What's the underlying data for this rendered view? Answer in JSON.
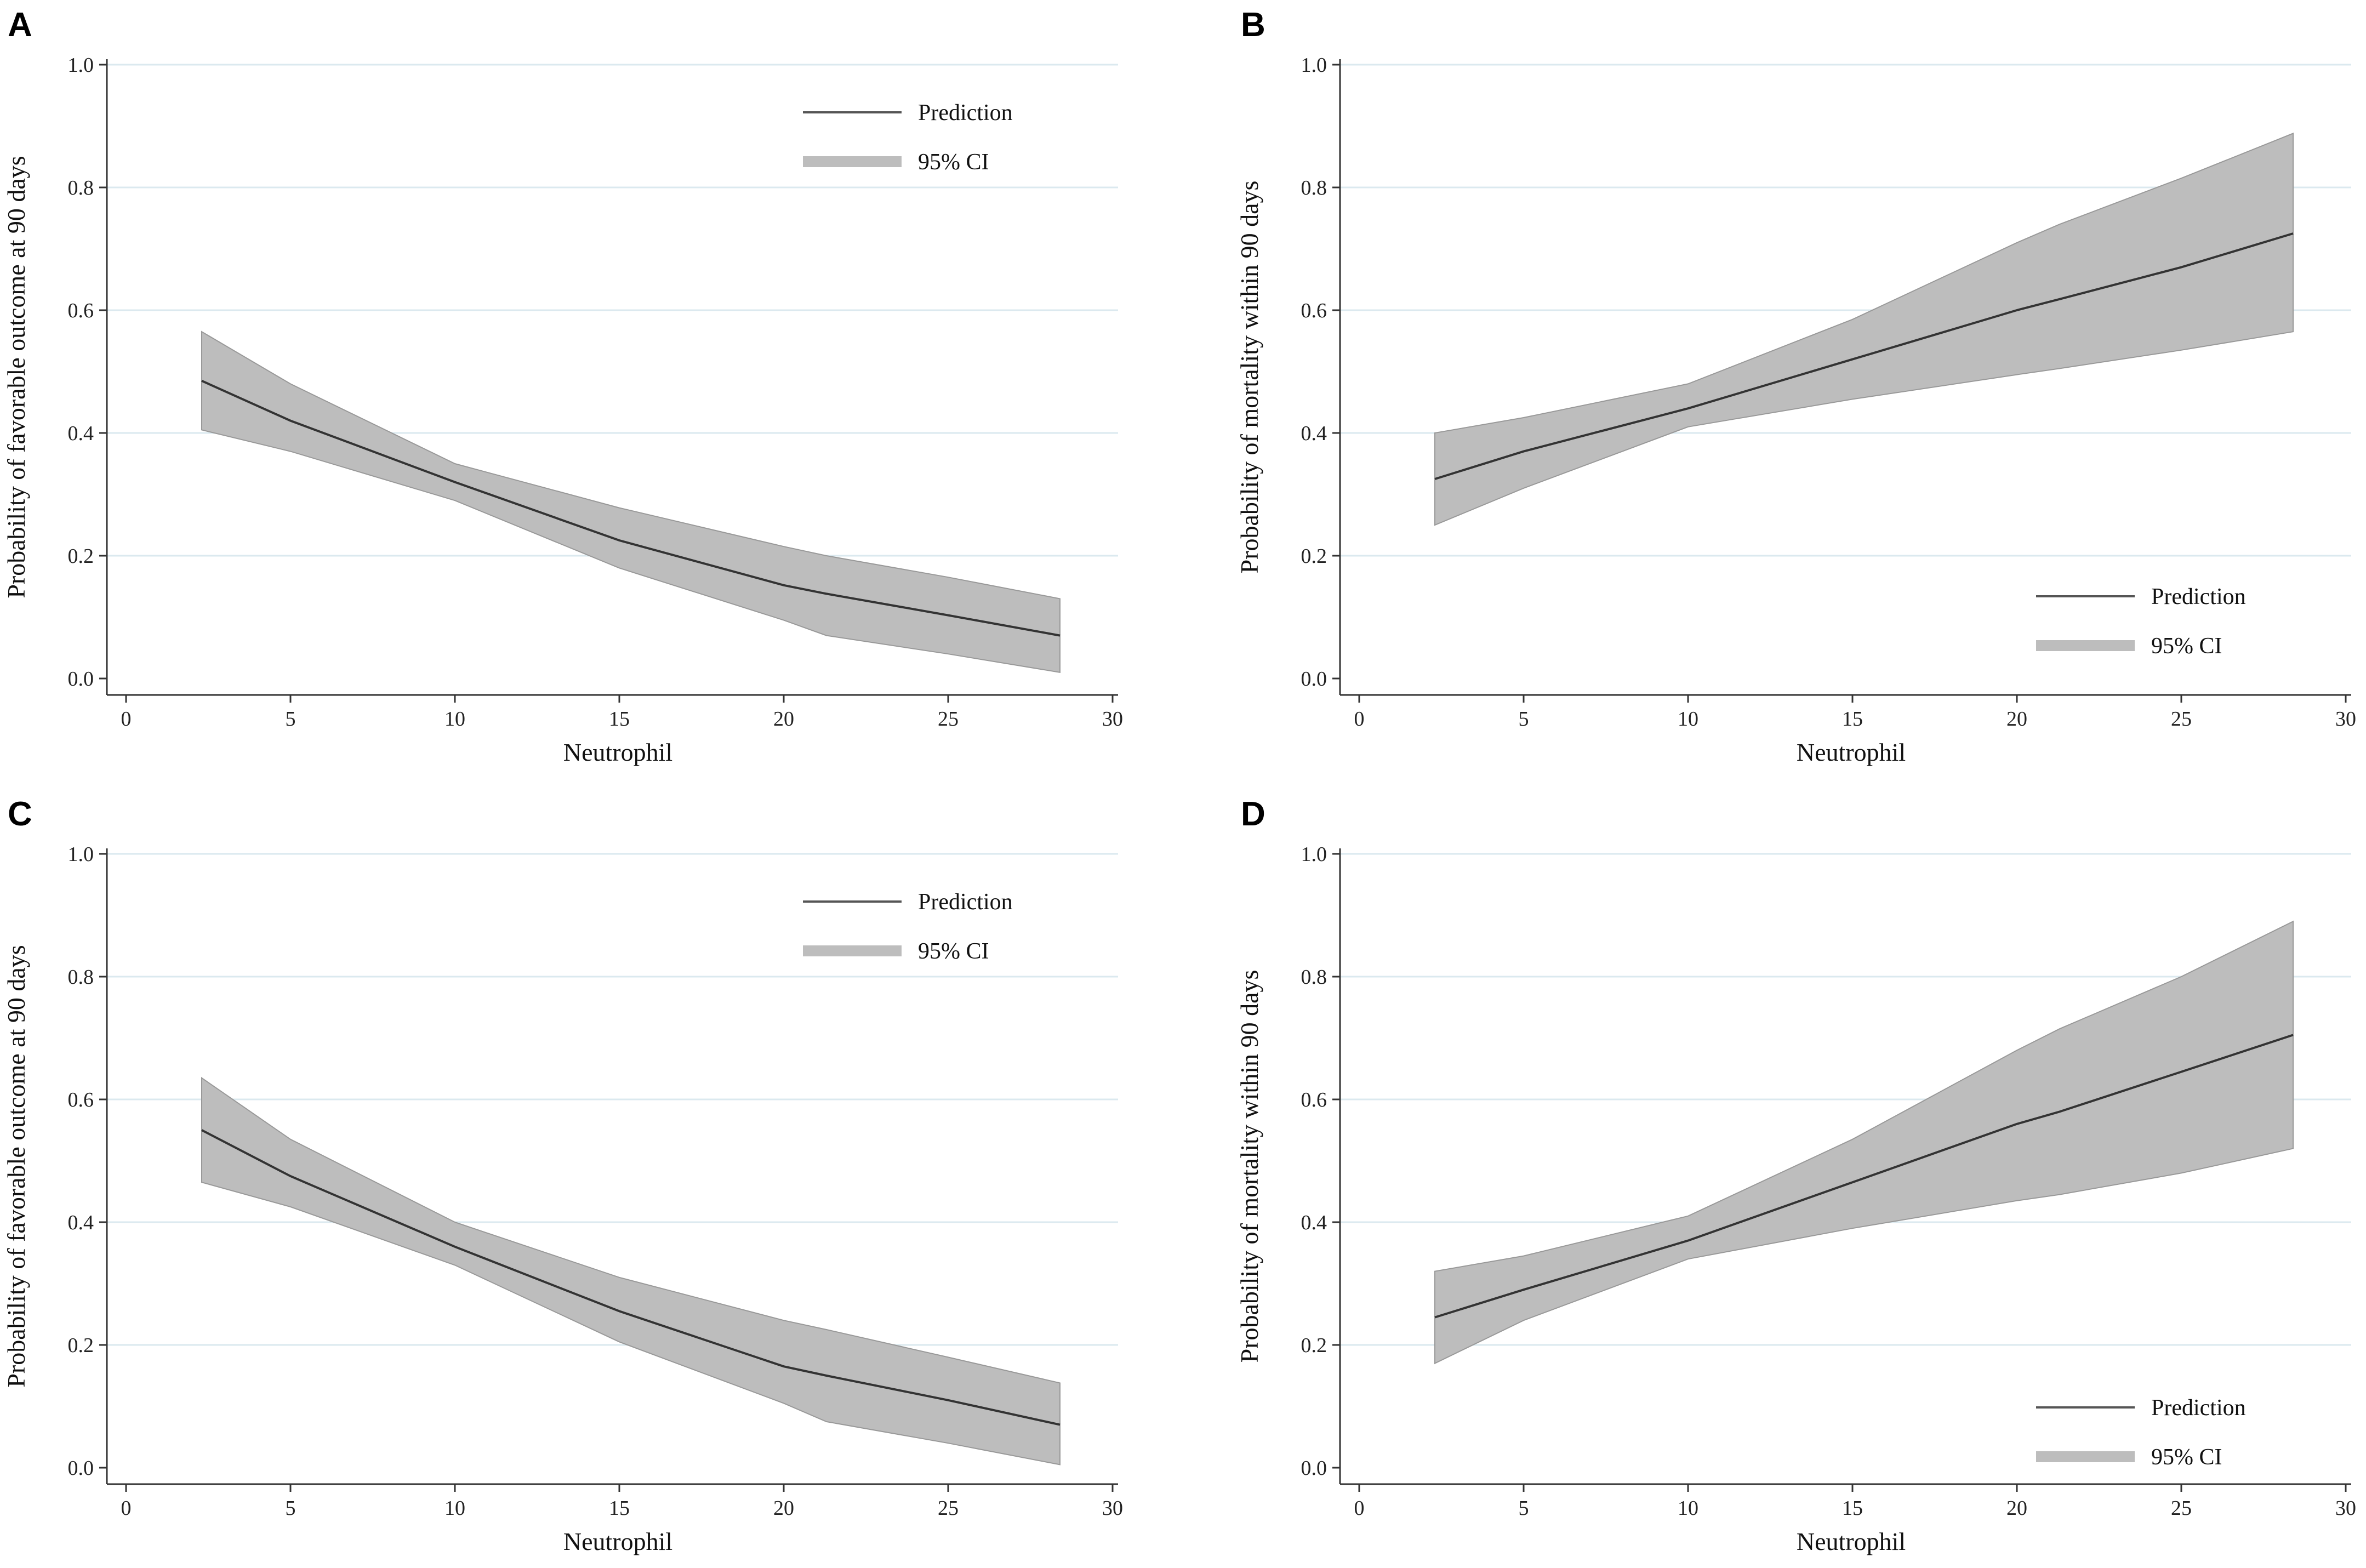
{
  "chart_data": [
    {
      "panel": "A",
      "type": "line",
      "xlabel": "Neutrophil",
      "ylabel": "Probability of favorable outcome at 90 days",
      "xlim": [
        0,
        30
      ],
      "ylim": [
        0,
        1
      ],
      "xticks": [
        "0",
        "5",
        "10",
        "15",
        "20",
        "25",
        "30"
      ],
      "yticks": [
        "0.0",
        "0.2",
        "0.4",
        "0.6",
        "0.8",
        "1.0"
      ],
      "grid": true,
      "legend_position": "top-right",
      "legend": {
        "prediction": "Prediction",
        "ci": "95% CI"
      },
      "series": [
        {
          "name": "Prediction",
          "x": [
            2.3,
            5,
            10,
            15,
            20,
            21.3,
            25,
            28.4
          ],
          "y": [
            0.485,
            0.42,
            0.32,
            0.225,
            0.152,
            0.138,
            0.103,
            0.07
          ]
        },
        {
          "name": "95% CI lower",
          "x": [
            2.3,
            5,
            10,
            15,
            20,
            21.3,
            25,
            28.4
          ],
          "y": [
            0.405,
            0.37,
            0.29,
            0.18,
            0.095,
            0.07,
            0.04,
            0.01
          ]
        },
        {
          "name": "95% CI upper",
          "x": [
            2.3,
            5,
            10,
            15,
            20,
            21.3,
            25,
            28.4
          ],
          "y": [
            0.565,
            0.48,
            0.35,
            0.278,
            0.215,
            0.2,
            0.165,
            0.13
          ]
        }
      ]
    },
    {
      "panel": "B",
      "type": "line",
      "xlabel": "Neutrophil",
      "ylabel": "Probability of mortality within 90 days",
      "xlim": [
        0,
        30
      ],
      "ylim": [
        0,
        1
      ],
      "xticks": [
        "0",
        "5",
        "10",
        "15",
        "20",
        "25",
        "30"
      ],
      "yticks": [
        "0.0",
        "0.2",
        "0.4",
        "0.6",
        "0.8",
        "1.0"
      ],
      "grid": true,
      "legend_position": "bottom-right",
      "legend": {
        "prediction": "Prediction",
        "ci": "95% CI"
      },
      "series": [
        {
          "name": "Prediction",
          "x": [
            2.3,
            5,
            10,
            15,
            20,
            21.3,
            25,
            28.4
          ],
          "y": [
            0.325,
            0.37,
            0.44,
            0.52,
            0.6,
            0.618,
            0.67,
            0.725
          ]
        },
        {
          "name": "95% CI lower",
          "x": [
            2.3,
            5,
            10,
            15,
            20,
            21.3,
            25,
            28.4
          ],
          "y": [
            0.25,
            0.31,
            0.41,
            0.455,
            0.495,
            0.505,
            0.535,
            0.565
          ]
        },
        {
          "name": "95% CI upper",
          "x": [
            2.3,
            5,
            10,
            15,
            20,
            21.3,
            25,
            28.4
          ],
          "y": [
            0.4,
            0.425,
            0.48,
            0.585,
            0.71,
            0.74,
            0.815,
            0.888
          ]
        }
      ]
    },
    {
      "panel": "C",
      "type": "line",
      "xlabel": "Neutrophil",
      "ylabel": "Probability of favorable outcome at 90 days",
      "xlim": [
        0,
        30
      ],
      "ylim": [
        0,
        1
      ],
      "xticks": [
        "0",
        "5",
        "10",
        "15",
        "20",
        "25",
        "30"
      ],
      "yticks": [
        "0.0",
        "0.2",
        "0.4",
        "0.6",
        "0.8",
        "1.0"
      ],
      "grid": true,
      "legend_position": "top-right",
      "legend": {
        "prediction": "Prediction",
        "ci": "95% CI"
      },
      "series": [
        {
          "name": "Prediction",
          "x": [
            2.3,
            5,
            10,
            15,
            20,
            21.3,
            25,
            28.4
          ],
          "y": [
            0.55,
            0.475,
            0.36,
            0.255,
            0.165,
            0.15,
            0.11,
            0.07
          ]
        },
        {
          "name": "95% CI lower",
          "x": [
            2.3,
            5,
            10,
            15,
            20,
            21.3,
            25,
            28.4
          ],
          "y": [
            0.465,
            0.425,
            0.33,
            0.205,
            0.105,
            0.075,
            0.04,
            0.005
          ]
        },
        {
          "name": "95% CI upper",
          "x": [
            2.3,
            5,
            10,
            15,
            20,
            21.3,
            25,
            28.4
          ],
          "y": [
            0.635,
            0.535,
            0.4,
            0.31,
            0.24,
            0.225,
            0.18,
            0.138
          ]
        }
      ]
    },
    {
      "panel": "D",
      "type": "line",
      "xlabel": "Neutrophil",
      "ylabel": "Probability of mortality within 90 days",
      "xlim": [
        0,
        30
      ],
      "ylim": [
        0,
        1
      ],
      "xticks": [
        "0",
        "5",
        "10",
        "15",
        "20",
        "25",
        "30"
      ],
      "yticks": [
        "0.0",
        "0.2",
        "0.4",
        "0.6",
        "0.8",
        "1.0"
      ],
      "grid": true,
      "legend_position": "bottom-right",
      "legend": {
        "prediction": "Prediction",
        "ci": "95% CI"
      },
      "series": [
        {
          "name": "Prediction",
          "x": [
            2.3,
            5,
            10,
            15,
            20,
            21.3,
            25,
            28.4
          ],
          "y": [
            0.245,
            0.29,
            0.37,
            0.465,
            0.56,
            0.58,
            0.645,
            0.705
          ]
        },
        {
          "name": "95% CI lower",
          "x": [
            2.3,
            5,
            10,
            15,
            20,
            21.3,
            25,
            28.4
          ],
          "y": [
            0.17,
            0.24,
            0.34,
            0.39,
            0.435,
            0.445,
            0.48,
            0.52
          ]
        },
        {
          "name": "95% CI upper",
          "x": [
            2.3,
            5,
            10,
            15,
            20,
            21.3,
            25,
            28.4
          ],
          "y": [
            0.32,
            0.345,
            0.41,
            0.535,
            0.68,
            0.715,
            0.8,
            0.89
          ]
        }
      ]
    }
  ]
}
